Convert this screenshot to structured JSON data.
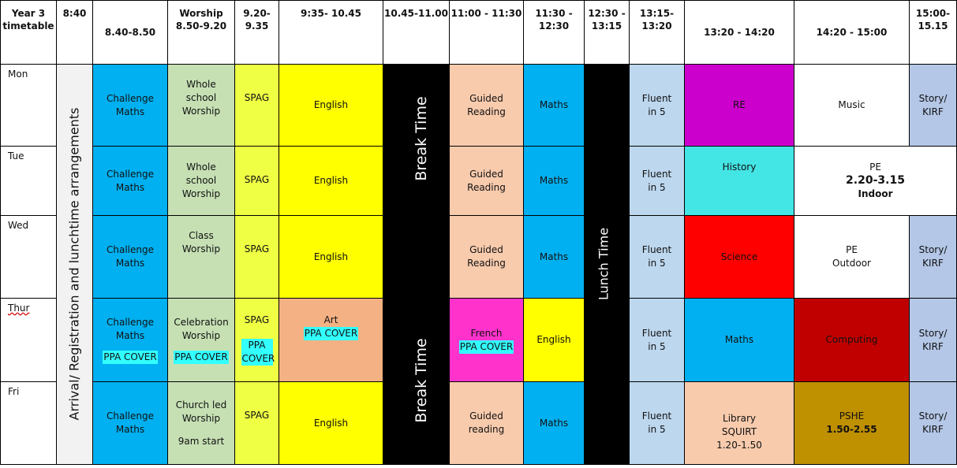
{
  "headers": [
    "Year 3 timetable",
    "8:40",
    "8.40-8.50",
    "Worship 8.50-9.20",
    "9.20-9.35",
    "9:35- 10.45",
    "10.45-11.00",
    "11:00 - 11:30",
    "11:30 - 12:30",
    "12:30 - 13:15",
    "13:15-13:20",
    "13:20 - 14:20",
    "14:20 - 15:00",
    "15:00-15.15"
  ],
  "days": [
    "Mon",
    "Tue",
    "Wed",
    "Thur",
    "Fri"
  ],
  "arrival_label": "Arrival/ Registration and lunchtime arrangements",
  "break_label": "Break Time",
  "lunch_label": "Lunch Time",
  "mon": {
    "challenge": "Challenge Maths",
    "worship": "Whole school Worship",
    "spag": "SPAG",
    "english": "English",
    "reading": "Guided Reading",
    "maths": "Maths",
    "fluent": "Fluent in 5",
    "re": "RE",
    "music": "Music",
    "story": "Story/ KIRF"
  },
  "tue": {
    "challenge": "Challenge Maths",
    "worship": "Whole school Worship",
    "spag": "SPAG",
    "english": "English",
    "reading": "Guided Reading",
    "maths": "Maths",
    "fluent": "Fluent in 5",
    "history": "History",
    "pe": "PE",
    "pe_time": "2.20-3.15",
    "pe_where": "Indoor"
  },
  "wed": {
    "challenge": "Challenge Maths",
    "worship": "Class Worship",
    "spag": "SPAG",
    "english": "English",
    "reading": "Guided Reading",
    "maths": "Maths",
    "fluent": "Fluent in 5",
    "science": "Science",
    "pe": "PE",
    "pe_where": "Outdoor",
    "story": "Story/ KIRF"
  },
  "thu": {
    "challenge": "Challenge Maths",
    "challenge_cover": "PPA COVER",
    "worship": "Celebration Worship",
    "worship_cover": "PPA COVER",
    "spag": "SPAG",
    "spag_cover": "PPA COVER",
    "art": "Art",
    "art_cover": "PPA COVER",
    "french": "French",
    "french_cover": "PPA COVER",
    "english": "English",
    "fluent": "Fluent in 5",
    "maths": "Maths",
    "computing": "Computing",
    "story": "Story/ KIRF"
  },
  "fri": {
    "challenge": "Challenge Maths",
    "worship": "Church led Worship",
    "worship_note": "9am start",
    "spag": "SPAG",
    "english": "English",
    "reading": "Guided reading",
    "maths": "Maths",
    "fluent": "Fluent in 5",
    "library": "Library SQUIRT",
    "library_time": "1.20-1.50",
    "pshe": "PSHE",
    "pshe_time": "1.50-2.55",
    "story": "Story/ KIRF"
  },
  "colors": {
    "challenge": "#00b0f0",
    "worship": "#c6e0b4",
    "spag": "#eeff44",
    "english": "#ffff00",
    "reading": "#f8cbad",
    "fluent": "#bdd7ee",
    "re": "#cc00cc",
    "history": "#44e5e5",
    "science": "#ff0000",
    "computing": "#c00000",
    "art": "#f4b183",
    "french": "#ff33cc",
    "library": "#f8cbad",
    "pshe": "#bf9000",
    "story": "#b4c7e7",
    "arrival": "#f2f2f2",
    "break": "#000000",
    "highlight": "#33ffff"
  }
}
